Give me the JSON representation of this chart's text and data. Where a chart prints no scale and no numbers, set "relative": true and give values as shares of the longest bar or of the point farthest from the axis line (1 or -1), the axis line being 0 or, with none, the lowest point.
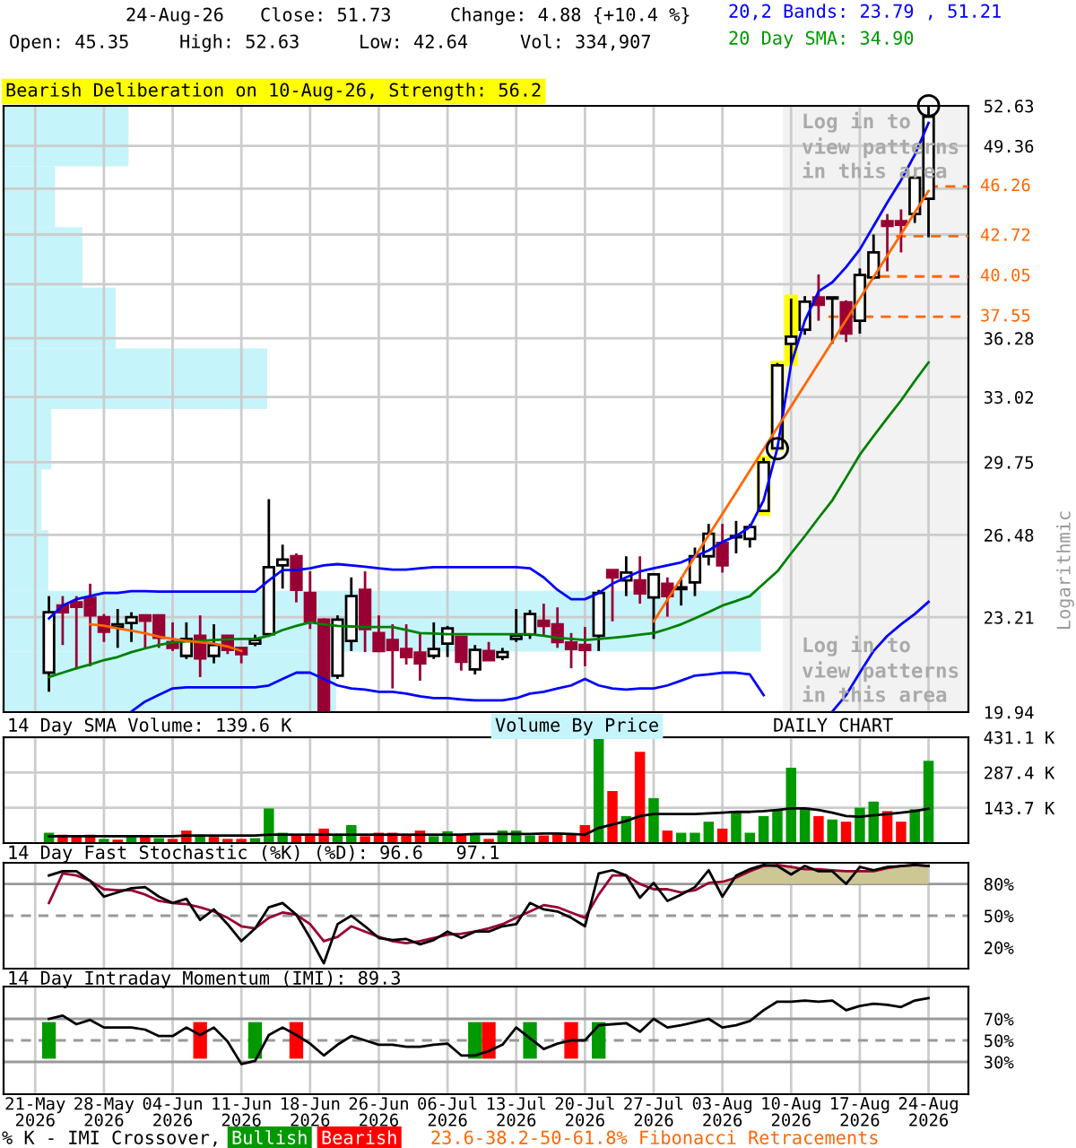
{
  "chart_data": [
    {
      "type": "candlestick",
      "title": "Bearish Deliberation on 10-Aug-26, Strength: 56.2",
      "ylabel": "Logarithmic",
      "annotations": [
        "24-Aug-26",
        "Close: 51.73",
        "Change: 4.88 {+10.4 %}",
        "Open: 45.35",
        "High: 52.63",
        "Low: 42.64",
        "Vol: 334,907",
        "20,2 Bands: 23.79 , 51.21",
        "20 Day SMA: 34.90",
        "Log in to\nview patterns\nin this area",
        "Log in to\nview patterns\nin this area",
        "DAILY CHART",
        "23.6-38.2-50-61.8% Fibonacci Retracements"
      ],
      "categories": [
        null,
        null,
        null,
        null,
        null,
        null,
        null,
        null,
        null,
        null,
        null,
        null,
        null,
        null,
        null,
        null,
        null,
        null,
        null,
        null,
        null,
        null,
        null,
        null,
        null,
        null,
        null,
        null,
        null,
        null,
        null,
        null,
        null,
        null,
        null,
        null,
        null,
        null,
        null,
        null,
        null,
        null,
        null,
        null,
        null,
        null,
        null,
        null,
        null,
        null,
        null,
        null,
        null,
        null,
        null,
        null,
        null,
        null,
        null,
        null,
        null,
        null,
        null,
        null,
        null,
        null
      ],
      "ohlc": [
        null,
        [
          21.24,
          24.01,
          20.6,
          23.4
        ],
        [
          23.65,
          24.01,
          22.2,
          23.4
        ],
        [
          23.77,
          24.01,
          21.35,
          23.6
        ],
        [
          23.94,
          24.49,
          21.46,
          23.28
        ],
        [
          23.21,
          23.33,
          22.31,
          22.68
        ],
        [
          22.85,
          23.52,
          22.1,
          22.95
        ],
        [
          23.0,
          23.4,
          22.31,
          23.21
        ],
        [
          23.28,
          23.28,
          22.1,
          23.08
        ],
        [
          23.28,
          23.28,
          22.1,
          22.46
        ],
        [
          22.31,
          23.02,
          21.99,
          22.1
        ],
        [
          21.82,
          23.02,
          21.71,
          22.42
        ],
        [
          22.53,
          23.28,
          21.09,
          21.73
        ],
        [
          21.82,
          22.95,
          21.56,
          22.2
        ],
        [
          22.53,
          22.53,
          21.88,
          22.03
        ],
        [
          22.1,
          22.14,
          21.56,
          21.88
        ],
        [
          22.25,
          22.57,
          22.16,
          22.38
        ],
        [
          22.59,
          28.04,
          22.53,
          25.15
        ],
        [
          25.22,
          26.07,
          24.3,
          25.46
        ],
        [
          25.59,
          25.71,
          23.77,
          24.25
        ],
        [
          24.13,
          24.98,
          22.78,
          23.06
        ],
        [
          23.12,
          23.17,
          19.95,
          20.0
        ],
        [
          21.14,
          23.28,
          21.03,
          23.12
        ],
        [
          22.35,
          24.74,
          21.99,
          24.01
        ],
        [
          24.25,
          24.98,
          21.95,
          22.78
        ],
        [
          22.63,
          23.28,
          21.95,
          21.99
        ],
        [
          22.38,
          22.95,
          20.71,
          22.03
        ],
        [
          22.06,
          22.95,
          21.52,
          21.78
        ],
        [
          21.93,
          22.63,
          20.97,
          21.56
        ],
        [
          21.82,
          23.02,
          21.71,
          22.06
        ],
        [
          22.25,
          22.89,
          21.78,
          22.8
        ],
        [
          22.49,
          22.53,
          21.31,
          21.61
        ],
        [
          21.35,
          22.2,
          21.18,
          22.03
        ],
        [
          21.99,
          22.31,
          21.66,
          21.67
        ],
        [
          21.78,
          22.1,
          21.67,
          21.95
        ],
        [
          22.42,
          23.52,
          22.31,
          22.53
        ],
        [
          22.57,
          23.48,
          22.42,
          23.33
        ],
        [
          23.08,
          23.72,
          22.53,
          22.89
        ],
        [
          22.95,
          23.58,
          22.1,
          22.31
        ],
        [
          22.29,
          22.63,
          21.39,
          22.06
        ],
        [
          22.2,
          22.85,
          21.46,
          22.03
        ],
        [
          22.53,
          24.25,
          21.99,
          24.13
        ],
        [
          25.03,
          25.03,
          23.06,
          24.74
        ],
        [
          24.62,
          25.59,
          24.01,
          24.93
        ],
        [
          24.62,
          25.59,
          23.72,
          24.11
        ],
        [
          23.96,
          24.86,
          22.42,
          24.86
        ],
        [
          24.49,
          24.74,
          23.23,
          24.01
        ],
        [
          24.28,
          24.74,
          23.65,
          24.35
        ],
        [
          24.54,
          25.95,
          24.01,
          25.59
        ],
        [
          25.59,
          26.95,
          25.22,
          26.53
        ],
        [
          26.14,
          26.95,
          24.93,
          25.22
        ],
        [
          26.38,
          27.08,
          25.71,
          26.43
        ],
        [
          26.31,
          26.95,
          25.95,
          26.82
        ],
        [
          27.52,
          29.96,
          27.47,
          29.75
        ],
        [
          30.42,
          34.87,
          30.36,
          34.74
        ],
        [
          35.96,
          38.66,
          34.8,
          36.37
        ],
        [
          36.78,
          38.81,
          36.48,
          38.47
        ],
        [
          38.73,
          40.18,
          37.31,
          38.28
        ],
        [
          38.66,
          38.73,
          35.96,
          38.73
        ],
        [
          38.43,
          38.55,
          36.06,
          36.55
        ],
        [
          37.31,
          40.57,
          36.55,
          40.14
        ],
        [
          39.99,
          42.83,
          39.87,
          41.62
        ],
        [
          43.75,
          44.26,
          40.38,
          43.42
        ],
        [
          43.75,
          44.59,
          41.62,
          43.5
        ],
        [
          44.26,
          47.11,
          43.63,
          46.91
        ],
        [
          45.35,
          52.63,
          42.64,
          51.73
        ]
      ],
      "colors": [
        null,
        "#ffffff",
        "#990033",
        "#990033",
        "#990033",
        "#990033",
        "#ffffff",
        "#ffffff",
        "#990033",
        "#990033",
        "#990033",
        "#ffffff",
        "#990033",
        "#ffffff",
        "#990033",
        "#990033",
        "#ffffff",
        "#ffffff",
        "#ffffff",
        "#990033",
        "#990033",
        "#990033",
        "#ffffff",
        "#ffffff",
        "#990033",
        "#990033",
        "#990033",
        "#990033",
        "#990033",
        "#ffffff",
        "#ffffff",
        "#990033",
        "#ffffff",
        "#990033",
        "#ffffff",
        "#ffffff",
        "#ffffff",
        "#990033",
        "#990033",
        "#990033",
        "#990033",
        "#ffffff",
        "#990033",
        "#ffffff",
        "#990033",
        "#ffffff",
        "#990033",
        "#ffffff",
        "#ffffff",
        "#ffffff",
        "#990033",
        "#ffffff",
        "#ffffff",
        "#ffffff",
        "#ffffff",
        "#ffffff",
        "#ffffff",
        "#990033",
        "#ffffff",
        "#990033",
        "#ffffff",
        "#ffffff",
        "#990033",
        "#990033",
        "#ffffff",
        "#ffffff"
      ],
      "series": [
        {
          "type": "bar",
          "color": "#ffff00",
          "base": [
            null,
            null,
            null,
            null,
            null,
            null,
            null,
            null,
            null,
            null,
            null,
            null,
            null,
            null,
            null,
            null,
            null,
            null,
            null,
            null,
            null,
            null,
            null,
            null,
            null,
            null,
            null,
            null,
            null,
            null,
            null,
            null,
            null,
            null,
            null,
            null,
            null,
            null,
            null,
            null,
            null,
            null,
            null,
            null,
            null,
            null,
            null,
            null,
            null,
            null,
            null,
            null,
            null,
            27.3,
            30.3,
            34.7,
            null,
            null,
            null,
            null,
            null,
            null,
            null,
            null,
            null,
            null
          ],
          "values": [
            null,
            null,
            null,
            null,
            null,
            null,
            null,
            null,
            null,
            null,
            null,
            null,
            null,
            null,
            null,
            null,
            null,
            null,
            null,
            null,
            null,
            null,
            null,
            null,
            null,
            null,
            null,
            null,
            null,
            null,
            null,
            null,
            null,
            null,
            null,
            null,
            null,
            null,
            null,
            null,
            null,
            null,
            null,
            null,
            null,
            null,
            null,
            null,
            null,
            null,
            null,
            null,
            null,
            2.75,
            4.7,
            4.2,
            null,
            null,
            null,
            null,
            null,
            null,
            null,
            null,
            null,
            null
          ]
        },
        {
          "type": "line",
          "color": "#0000ff",
          "values": [
            null,
            23.17,
            23.65,
            23.89,
            24.01,
            24.13,
            24.13,
            24.2,
            24.2,
            24.18,
            24.18,
            24.18,
            24.18,
            24.18,
            24.18,
            24.18,
            24.18,
            24.62,
            25.03,
            25.03,
            25.1,
            25.22,
            25.27,
            25.22,
            25.17,
            25.1,
            25.05,
            25.05,
            25.1,
            25.15,
            25.15,
            25.15,
            25.15,
            25.15,
            25.15,
            25.15,
            25.1,
            24.74,
            24.25,
            23.89,
            23.89,
            24.13,
            24.49,
            24.74,
            24.98,
            25.1,
            25.22,
            25.34,
            25.59,
            25.83,
            26.19,
            26.43,
            26.82,
            27.99,
            30.42,
            34.8,
            37.31,
            39.11,
            39.68,
            40.65,
            41.82,
            43.42,
            45.09,
            46.72,
            48.66,
            51.21
          ]
        },
        {
          "type": "line",
          "color": "#0000ff",
          "values": [
            null,
            null,
            null,
            null,
            null,
            null,
            null,
            19.96,
            20.28,
            20.5,
            20.71,
            20.75,
            20.75,
            20.75,
            20.75,
            20.75,
            20.75,
            20.81,
            21.03,
            21.24,
            21.24,
            21.03,
            20.81,
            20.71,
            20.67,
            20.6,
            20.6,
            20.54,
            20.45,
            20.39,
            20.39,
            20.35,
            20.32,
            20.32,
            20.32,
            20.39,
            20.54,
            20.6,
            20.71,
            20.81,
            21.03,
            20.81,
            20.71,
            20.67,
            20.71,
            20.71,
            20.81,
            20.97,
            21.14,
            21.18,
            21.24,
            21.24,
            21.18,
            20.49,
            null,
            null,
            null,
            null,
            19.96,
            20.49,
            21.24,
            21.99,
            22.53,
            22.95,
            23.33,
            23.79
          ]
        },
        {
          "type": "line",
          "color": "#008000",
          "values": [
            null,
            21.09,
            21.24,
            21.39,
            21.52,
            21.67,
            21.78,
            21.95,
            22.08,
            22.2,
            22.29,
            22.33,
            22.35,
            22.38,
            22.4,
            22.42,
            22.42,
            22.53,
            22.74,
            22.89,
            23.02,
            22.95,
            22.89,
            22.87,
            22.85,
            22.85,
            22.85,
            22.74,
            22.63,
            22.61,
            22.59,
            22.59,
            22.59,
            22.59,
            22.59,
            22.59,
            22.59,
            22.53,
            22.46,
            22.42,
            22.38,
            22.42,
            22.46,
            22.51,
            22.57,
            22.63,
            22.78,
            22.95,
            23.17,
            23.4,
            23.65,
            23.82,
            24.01,
            24.49,
            24.98,
            25.71,
            26.43,
            27.21,
            27.99,
            29.02,
            30.11,
            31.02,
            31.93,
            32.84,
            33.88,
            34.9
          ]
        },
        {
          "type": "line",
          "color": "#ff6600",
          "values": [
            null,
            null,
            null,
            null,
            22.95,
            22.9,
            22.8,
            22.72,
            22.62,
            22.5,
            22.42,
            22.35,
            22.3,
            22.25,
            22.15,
            21.99,
            null,
            null,
            null,
            null,
            null,
            null,
            null,
            null,
            null,
            null,
            null,
            null,
            null,
            null,
            null,
            null,
            null,
            null,
            null,
            null,
            null,
            null,
            null,
            null,
            null,
            null,
            null,
            null,
            null,
            null,
            null,
            null,
            null,
            null,
            null,
            null,
            null,
            null,
            null,
            null,
            null,
            null,
            null,
            null,
            null,
            null,
            null,
            null,
            null,
            null
          ]
        },
        {
          "type": "line",
          "color": "#ff6600",
          "values": [
            null,
            null,
            null,
            null,
            null,
            null,
            null,
            null,
            null,
            null,
            null,
            null,
            null,
            null,
            null,
            null,
            null,
            null,
            null,
            null,
            null,
            null,
            null,
            null,
            null,
            null,
            null,
            null,
            null,
            null,
            null,
            null,
            null,
            null,
            null,
            null,
            null,
            null,
            null,
            null,
            null,
            null,
            null,
            null,
            null,
            23.06,
            23.87,
            24.7,
            25.57,
            26.47,
            27.39,
            28.35,
            29.35,
            30.38,
            31.44,
            32.54,
            33.68,
            34.86,
            36.08,
            37.35,
            38.66,
            40.01,
            41.41,
            42.86,
            44.37,
            45.93
          ]
        },
        {
          "type": "scatter",
          "marker": "circle",
          "color": "#000000",
          "values": [
            null,
            null,
            null,
            null,
            null,
            null,
            null,
            null,
            null,
            null,
            null,
            null,
            null,
            null,
            null,
            null,
            null,
            null,
            null,
            null,
            null,
            null,
            null,
            null,
            null,
            null,
            null,
            null,
            null,
            null,
            null,
            null,
            null,
            null,
            null,
            null,
            null,
            null,
            null,
            null,
            null,
            null,
            null,
            null,
            null,
            null,
            null,
            null,
            null,
            null,
            null,
            null,
            null,
            null,
            30.4,
            null,
            null,
            null,
            null,
            null,
            null,
            null,
            null,
            null,
            null,
            52.63
          ]
        }
      ],
      "ref_lines": [
        {
          "axis": "y",
          "value": 46.26,
          "label": "46.26",
          "color": "#ff6600",
          "line_style": "dashed"
        },
        {
          "axis": "y",
          "value": 42.72,
          "label": "42.72",
          "color": "#ff6600",
          "line_style": "dashed"
        },
        {
          "axis": "y",
          "value": 40.05,
          "label": "40.05",
          "color": "#ff6600",
          "line_style": "dashed"
        },
        {
          "axis": "y",
          "value": 37.55,
          "label": "37.55",
          "color": "#ff6600",
          "line_style": "dashed"
        }
      ],
      "log": true,
      "ylim": [
        19.94,
        52.63
      ],
      "yticks": [
        19.94,
        23.21,
        26.48,
        29.75,
        33.02,
        36.28,
        {
          "value": 39.56,
          "label": null
        },
        {
          "value": 42.83,
          "label": null
        },
        {
          "value": 46.1,
          "label": null
        },
        49.36,
        52.63
      ],
      "grid": true,
      "tick_labels": "y"
    },
    {
      "type": "bar",
      "orientation": "horizontal",
      "relative": true,
      "categories": [
        null,
        null,
        null,
        null,
        null,
        null,
        null,
        null,
        null,
        null
      ],
      "series": [
        {
          "name": "Volume By Price",
          "color": "#c6f4fb",
          "values": [
            0.165,
            0.068,
            0.104,
            0.148,
            0.348,
            0.063,
            0.05,
            0.059,
            1,
            0.439
          ]
        }
      ],
      "legend": "bottom"
    },
    {
      "type": "bar",
      "title": "14 Day SMA Volume: 139.6 K",
      "categories": [
        null,
        null,
        null,
        null,
        null,
        null,
        null,
        null,
        null,
        null,
        null,
        null,
        null,
        null,
        null,
        null,
        null,
        null,
        null,
        null,
        null,
        null,
        null,
        null,
        null,
        null,
        null,
        null,
        null,
        null,
        null,
        null,
        null,
        null,
        null,
        null,
        null,
        null,
        null,
        null,
        null,
        null,
        null,
        null,
        null,
        null,
        null,
        null,
        null,
        null,
        null,
        null,
        null,
        null,
        null,
        null,
        null,
        null,
        null,
        null,
        null,
        null,
        null,
        null,
        null,
        null
      ],
      "series": [
        {
          "type": "bar",
          "colors": [
            null,
            "#009900",
            "#ff0000",
            "#ff0000",
            "#ff0000",
            "#009900",
            "#ff0000",
            "#009900",
            "#ff0000",
            "#009900",
            "#ff0000",
            "#ff0000",
            "#009900",
            "#ff0000",
            "#ff0000",
            "#ff0000",
            "#009900",
            "#009900",
            "#009900",
            "#ff0000",
            "#ff0000",
            "#ff0000",
            "#009900",
            "#009900",
            "#ff0000",
            "#ff0000",
            "#ff0000",
            "#ff0000",
            "#ff0000",
            "#009900",
            "#009900",
            "#ff0000",
            "#009900",
            "#ff0000",
            "#009900",
            "#009900",
            "#009900",
            "#ff0000",
            "#ff0000",
            "#ff0000",
            "#ff0000",
            "#009900",
            "#ff0000",
            "#009900",
            "#ff0000",
            "#009900",
            "#ff0000",
            "#009900",
            "#009900",
            "#009900",
            "#ff0000",
            "#009900",
            "#009900",
            "#009900",
            "#009900",
            "#009900",
            "#009900",
            "#ff0000",
            "#009900",
            "#ff0000",
            "#009900",
            "#009900",
            "#ff0000",
            "#ff0000",
            "#009900",
            "#009900"
          ],
          "values": [
            null,
            42,
            34,
            25,
            34,
            17,
            14,
            25,
            25,
            20,
            17,
            51,
            34,
            25,
            17,
            17,
            20,
            141,
            42,
            34,
            34,
            59,
            34,
            73,
            28,
            42,
            42,
            31,
            51,
            28,
            48,
            31,
            34,
            17,
            51,
            51,
            31,
            31,
            42,
            34,
            73,
            431.1,
            212,
            110,
            372,
            183,
            51,
            42,
            42,
            87,
            59,
            127,
            42,
            110,
            133,
            307,
            144,
            110,
            96,
            87,
            144,
            169,
            130,
            87,
            138,
            335
          ]
        },
        {
          "type": "line",
          "color": "#000000",
          "values": [
            null,
            28,
            28,
            28,
            28,
            28,
            28,
            28,
            28,
            28,
            28,
            31,
            31,
            31,
            31,
            31,
            31,
            34,
            34,
            34,
            34,
            34,
            34,
            34,
            34,
            34,
            34,
            34,
            34,
            34,
            34,
            34,
            37,
            37,
            37,
            37,
            37,
            39,
            39,
            37,
            34,
            62,
            75,
            90,
            110,
            118,
            118,
            118,
            118,
            121,
            124,
            127,
            127,
            130,
            135,
            141,
            141,
            135,
            124,
            110,
            107,
            113,
            118,
            124,
            130,
            140
          ]
        }
      ],
      "ylim": [
        0,
        431.1
      ],
      "yticks": [
        {
          "value": 143.7,
          "label": "143.7 K"
        },
        {
          "value": 287.4,
          "label": "287.4 K"
        },
        {
          "value": 431.1,
          "label": "431.1 K"
        }
      ],
      "grid": true,
      "tick_labels": "y"
    },
    {
      "type": "line",
      "title": "14 Day Fast Stochastic (%K) (%D): 96.6   97.1",
      "categories": [
        null,
        null,
        null,
        null,
        null,
        null,
        null,
        null,
        null,
        null,
        null,
        null,
        null,
        null,
        null,
        null,
        null,
        null,
        null,
        null,
        null,
        null,
        null,
        null,
        null,
        null,
        null,
        null,
        null,
        null,
        null,
        null,
        null,
        null,
        null,
        null,
        null,
        null,
        null,
        null,
        null,
        null,
        null,
        null,
        null,
        null,
        null,
        null,
        null,
        null,
        null,
        null,
        null,
        null,
        null,
        null,
        null,
        null,
        null,
        null,
        null,
        null,
        null,
        null,
        null,
        null
      ],
      "series": [
        {
          "type": "area",
          "color": "#cdc695",
          "values": [
            null,
            null,
            null,
            null,
            null,
            null,
            null,
            null,
            null,
            null,
            null,
            null,
            null,
            null,
            null,
            null,
            null,
            null,
            null,
            null,
            null,
            null,
            null,
            null,
            null,
            null,
            null,
            null,
            null,
            null,
            null,
            null,
            null,
            null,
            null,
            null,
            null,
            null,
            null,
            null,
            null,
            null,
            null,
            null,
            null,
            null,
            null,
            null,
            null,
            81,
            82,
            86,
            92,
            97,
            98,
            96,
            94,
            94,
            93,
            92,
            92,
            92,
            95,
            97,
            98,
            97
          ]
        },
        {
          "type": "line",
          "color": "#990033",
          "values": [
            null,
            62,
            90,
            88,
            83,
            75,
            74,
            74,
            70,
            64,
            62,
            61,
            58,
            54,
            48,
            40,
            38,
            48,
            53,
            51,
            42,
            26,
            30,
            40,
            35,
            30,
            26,
            24,
            26,
            29,
            32,
            33,
            35,
            38,
            42,
            48,
            54,
            60,
            58,
            53,
            48,
            70,
            88,
            88,
            80,
            75,
            75,
            72,
            74,
            81,
            82,
            86,
            92,
            97,
            98,
            96,
            94,
            94,
            93,
            92,
            92,
            92,
            95,
            97,
            98,
            97
          ]
        },
        {
          "type": "line",
          "color": "#000000",
          "values": [
            null,
            88,
            92,
            92,
            83,
            68,
            72,
            76,
            77,
            68,
            62,
            66,
            46,
            56,
            42,
            26,
            38,
            58,
            62,
            51,
            29,
            5,
            42,
            50,
            40,
            29,
            27,
            28,
            23,
            27,
            35,
            29,
            35,
            35,
            40,
            42,
            62,
            56,
            54,
            48,
            40,
            90,
            93,
            88,
            67,
            81,
            64,
            70,
            77,
            93,
            68,
            88,
            94,
            98,
            97,
            89,
            97,
            92,
            92,
            80,
            96,
            93,
            96,
            97,
            98,
            97
          ]
        }
      ],
      "ref_lines": [
        {
          "axis": "y",
          "value": 80,
          "color": "#999999"
        },
        {
          "axis": "y",
          "value": 50,
          "color": "#999999",
          "line_style": "dashed"
        }
      ],
      "ylim": [
        0,
        100
      ],
      "yticks": [
        {
          "value": 20,
          "label": "20%"
        },
        {
          "value": 50,
          "label": "50%"
        },
        {
          "value": 80,
          "label": "80%"
        }
      ],
      "grid": "x",
      "tick_labels": "y"
    },
    {
      "type": "line",
      "title": "14 Day Intraday Momentum (IMI): 89.3",
      "annotations": [
        "% K - IMI Crossover,"
      ],
      "categories": [
        "21-May\n2026",
        null,
        null,
        null,
        null,
        "28-May\n2026",
        null,
        null,
        null,
        null,
        "04-Jun\n2026",
        null,
        null,
        null,
        null,
        "11-Jun\n2026",
        null,
        null,
        null,
        null,
        "18-Jun\n2026",
        null,
        null,
        null,
        null,
        "26-Jun\n2026",
        null,
        null,
        null,
        null,
        "06-Jul\n2026",
        null,
        null,
        null,
        null,
        "13-Jul\n2026",
        null,
        null,
        null,
        null,
        "20-Jul\n2026",
        null,
        null,
        null,
        null,
        "27-Jul\n2026",
        null,
        null,
        null,
        null,
        "03-Aug\n2026",
        null,
        null,
        null,
        null,
        "10-Aug\n2026",
        null,
        null,
        null,
        null,
        "17-Aug\n2026",
        null,
        null,
        null,
        null,
        "24-Aug\n2026"
      ],
      "series": [
        {
          "type": "bar",
          "name": "Bullish",
          "color": "#009900",
          "base": [
            null,
            33,
            null,
            null,
            null,
            null,
            null,
            null,
            null,
            null,
            null,
            null,
            null,
            null,
            null,
            null,
            33,
            null,
            null,
            null,
            null,
            null,
            null,
            null,
            null,
            null,
            null,
            null,
            null,
            null,
            null,
            null,
            33,
            null,
            null,
            null,
            33,
            null,
            null,
            null,
            null,
            33,
            null,
            null,
            null,
            null,
            null,
            null,
            null,
            null,
            null,
            null,
            null,
            null,
            null,
            null,
            null,
            null,
            null,
            null,
            null,
            null,
            null,
            null,
            null,
            null
          ],
          "values": [
            null,
            34,
            null,
            null,
            null,
            null,
            null,
            null,
            null,
            null,
            null,
            null,
            null,
            null,
            null,
            null,
            34,
            null,
            null,
            null,
            null,
            null,
            null,
            null,
            null,
            null,
            null,
            null,
            null,
            null,
            null,
            null,
            34,
            null,
            null,
            null,
            34,
            null,
            null,
            null,
            null,
            34,
            null,
            null,
            null,
            null,
            null,
            null,
            null,
            null,
            null,
            null,
            null,
            null,
            null,
            null,
            null,
            null,
            null,
            null,
            null,
            null,
            null,
            null,
            null,
            null
          ]
        },
        {
          "type": "bar",
          "name": "Bearish",
          "color": "#ff0000",
          "base": [
            null,
            null,
            null,
            null,
            null,
            null,
            null,
            null,
            null,
            null,
            null,
            null,
            33,
            null,
            null,
            null,
            null,
            null,
            null,
            33,
            null,
            null,
            null,
            null,
            null,
            null,
            null,
            null,
            null,
            null,
            null,
            null,
            null,
            33,
            null,
            null,
            null,
            null,
            null,
            33,
            null,
            null,
            null,
            null,
            null,
            null,
            null,
            null,
            null,
            null,
            null,
            null,
            null,
            null,
            null,
            null,
            null,
            null,
            null,
            null,
            null,
            null,
            null,
            null,
            null,
            null
          ],
          "values": [
            null,
            null,
            null,
            null,
            null,
            null,
            null,
            null,
            null,
            null,
            null,
            null,
            34,
            null,
            null,
            null,
            null,
            null,
            null,
            34,
            null,
            null,
            null,
            null,
            null,
            null,
            null,
            null,
            null,
            null,
            null,
            null,
            null,
            34,
            null,
            null,
            null,
            null,
            null,
            34,
            null,
            null,
            null,
            null,
            null,
            null,
            null,
            null,
            null,
            null,
            null,
            null,
            null,
            null,
            null,
            null,
            null,
            null,
            null,
            null,
            null,
            null,
            null,
            null,
            null,
            null
          ]
        },
        {
          "type": "line",
          "color": "#000000",
          "values": [
            null,
            70,
            73,
            65,
            69,
            62,
            62,
            62,
            60,
            54,
            54,
            62,
            55,
            62,
            49,
            28,
            31,
            55,
            62,
            55,
            47,
            36,
            46,
            54,
            50,
            46,
            46,
            44,
            44,
            46,
            47,
            36,
            36,
            40,
            46,
            62,
            52,
            42,
            47,
            50,
            50,
            64,
            65,
            66,
            58,
            70,
            62,
            64,
            67,
            70,
            62,
            64,
            68,
            78,
            86,
            86,
            87,
            86,
            87,
            78,
            82,
            84,
            83,
            81,
            87,
            89.3
          ]
        }
      ],
      "ref_lines": [
        {
          "axis": "y",
          "value": 70,
          "color": "#999999"
        },
        {
          "axis": "y",
          "value": 50,
          "color": "#999999",
          "line_style": "dashed"
        },
        {
          "axis": "y",
          "value": 30,
          "color": "#999999"
        }
      ],
      "ylim": [
        0,
        100
      ],
      "yticks": [
        {
          "value": 30,
          "label": "30%"
        },
        {
          "value": 50,
          "label": "50%"
        },
        {
          "value": 70,
          "label": "70%"
        }
      ],
      "grid": "x",
      "legend": "bottom"
    }
  ]
}
